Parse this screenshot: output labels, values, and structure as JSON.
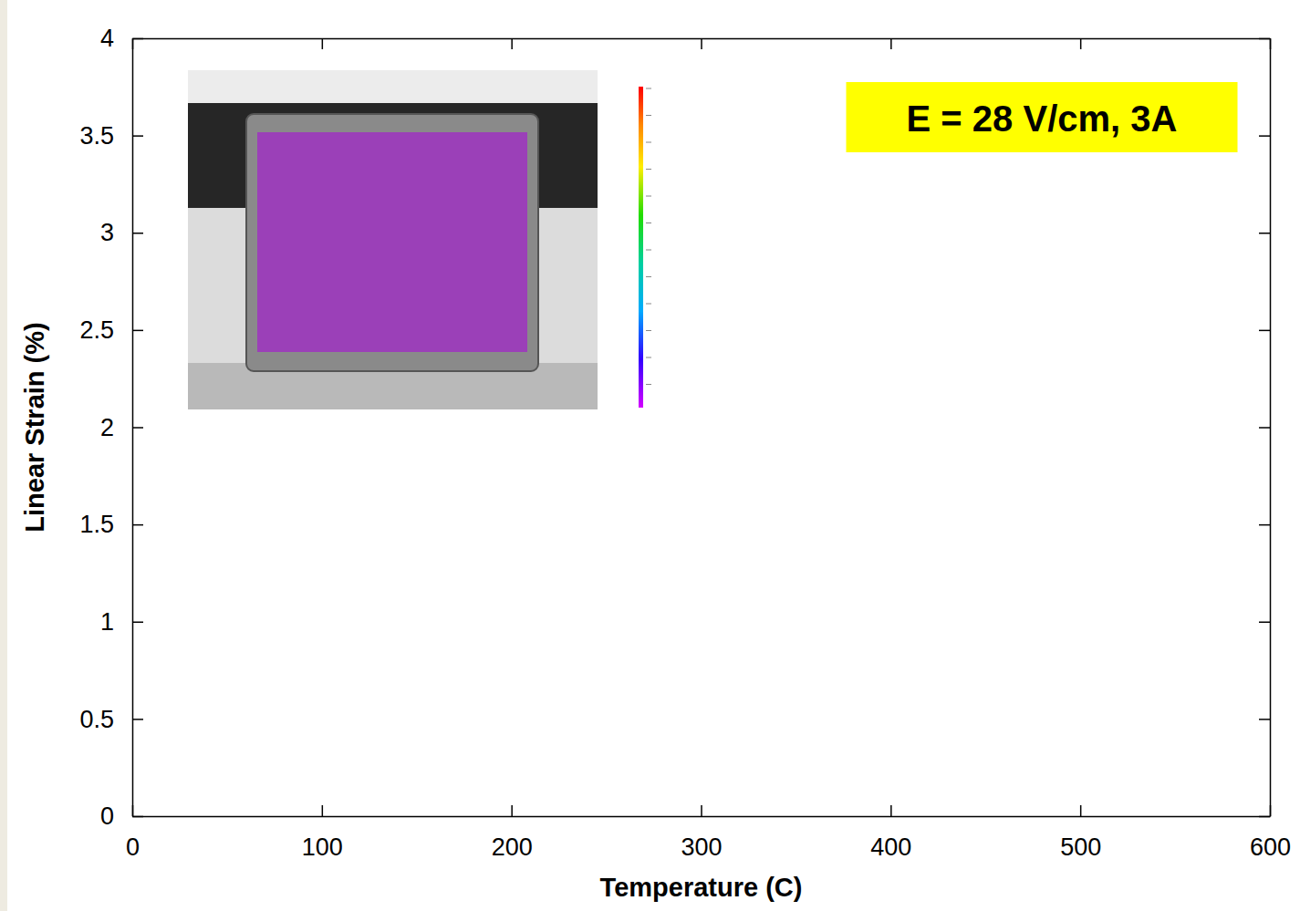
{
  "chart_data": {
    "type": "line",
    "xlabel": "Temperature (C)",
    "ylabel": "Linear Strain (%)",
    "xlim": [
      0,
      600
    ],
    "xticks": [
      0,
      100,
      200,
      300,
      400,
      500,
      600
    ],
    "ylim": [
      0,
      4
    ],
    "yticks": [
      0,
      0.5,
      1,
      1.5,
      2,
      2.5,
      3,
      3.5,
      4
    ],
    "annotations": [
      {
        "text": "E = 28 V/cm, 3A"
      }
    ],
    "grid": false
  }
}
